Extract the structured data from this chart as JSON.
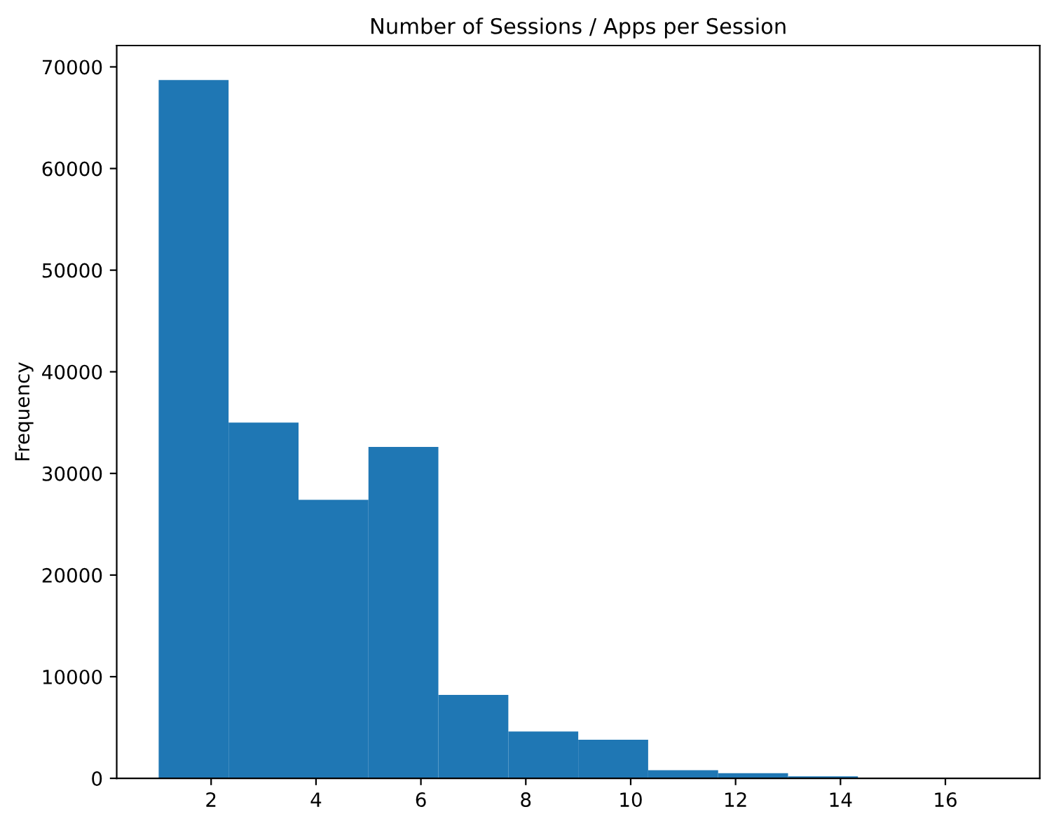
{
  "chart_data": {
    "type": "histogram",
    "title": "Number of Sessions / Apps per Session",
    "ylabel": "Frequency",
    "color": "#1f77b4",
    "bins": [
      1,
      2.333,
      3.667,
      5,
      6.333,
      7.667,
      9,
      10.333,
      11.667,
      13,
      14.333,
      15.667,
      17
    ],
    "values": [
      68700,
      35000,
      27400,
      32600,
      8200,
      4600,
      3800,
      800,
      500,
      200,
      20,
      50
    ],
    "xlim": [
      0.2,
      17.8
    ],
    "xticks": [
      2,
      4,
      6,
      8,
      10,
      12,
      14,
      16
    ],
    "ylim": [
      0,
      72100
    ],
    "yticks": [
      0,
      10000,
      20000,
      30000,
      40000,
      50000,
      60000,
      70000
    ],
    "grid": false
  }
}
